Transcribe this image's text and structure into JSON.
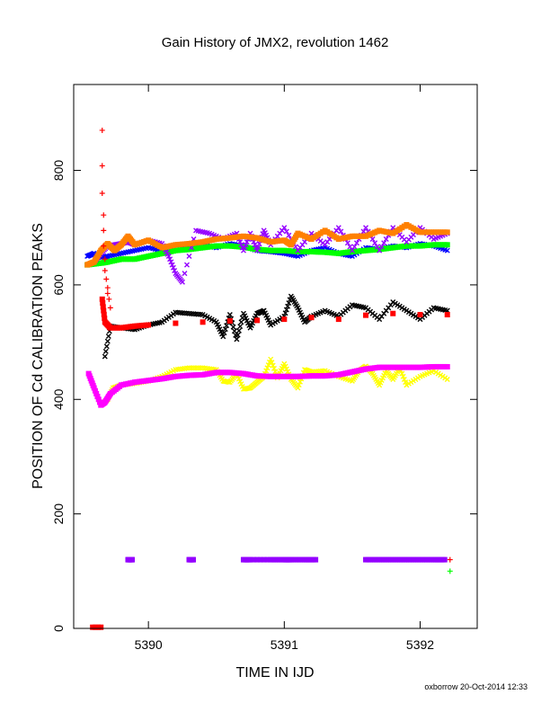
{
  "chart_data": {
    "type": "scatter",
    "title": "Gain History of JMX2, revolution 1462",
    "xlabel": "TIME IN IJD",
    "ylabel": "POSITION OF Cd CALIBRATION PEAKS",
    "footer": "oxborrow 20-Oct-2014 12:33",
    "xlim": [
      5389.45,
      5392.42
    ],
    "ylim": [
      0,
      950
    ],
    "x_ticks": [
      5390,
      5391,
      5392
    ],
    "y_ticks": [
      0,
      200,
      400,
      600,
      800
    ],
    "grid": false,
    "series": [
      {
        "color": "#ffff00",
        "marker": "x",
        "x": [
          5389.66,
          5389.7,
          5389.74,
          5389.8,
          5389.9,
          5390.0,
          5390.1,
          5390.2,
          5390.3,
          5390.4,
          5390.5,
          5390.55,
          5390.6,
          5390.65,
          5390.7,
          5390.75,
          5390.8,
          5390.85,
          5390.9,
          5390.95,
          5391.0,
          5391.05,
          5391.1,
          5391.15,
          5391.2,
          5391.3,
          5391.4,
          5391.5,
          5391.55,
          5391.6,
          5391.65,
          5391.7,
          5391.75,
          5391.8,
          5391.85,
          5391.9,
          5392.0,
          5392.1,
          5392.2
        ],
        "y": [
          392,
          400,
          420,
          425,
          428,
          432,
          440,
          452,
          455,
          455,
          452,
          432,
          430,
          445,
          418,
          420,
          430,
          440,
          470,
          438,
          462,
          435,
          420,
          452,
          448,
          450,
          440,
          432,
          450,
          458,
          445,
          425,
          450,
          435,
          455,
          425,
          440,
          450,
          435
        ]
      },
      {
        "color": "#ff00ff",
        "marker": "box",
        "x": [
          5389.56,
          5389.6,
          5389.65,
          5389.68,
          5389.72,
          5389.8,
          5389.9,
          5390.0,
          5390.1,
          5390.2,
          5390.3,
          5390.4,
          5390.5,
          5390.6,
          5390.7,
          5390.8,
          5390.9,
          5391.0,
          5391.1,
          5391.2,
          5391.3,
          5391.4,
          5391.5,
          5391.6,
          5391.7,
          5391.8,
          5391.9,
          5392.0,
          5392.1,
          5392.2
        ],
        "y": [
          445,
          420,
          390,
          395,
          410,
          425,
          430,
          433,
          436,
          440,
          442,
          443,
          447,
          447,
          445,
          441,
          440,
          440,
          440,
          441,
          441,
          443,
          448,
          453,
          456,
          456,
          456,
          456,
          457,
          457
        ]
      },
      {
        "color": "#000000",
        "marker": "x",
        "x": [
          5389.68,
          5389.72,
          5389.8,
          5389.9,
          5390.0,
          5390.1,
          5390.2,
          5390.3,
          5390.4,
          5390.5,
          5390.55,
          5390.6,
          5390.65,
          5390.7,
          5390.75,
          5390.8,
          5390.85,
          5390.9,
          5391.0,
          5391.05,
          5391.1,
          5391.15,
          5391.2,
          5391.3,
          5391.4,
          5391.5,
          5391.6,
          5391.7,
          5391.8,
          5391.9,
          5392.0,
          5392.1,
          5392.2
        ],
        "y": [
          475,
          528,
          525,
          522,
          530,
          535,
          552,
          550,
          548,
          535,
          510,
          548,
          505,
          550,
          525,
          550,
          555,
          530,
          545,
          580,
          560,
          535,
          545,
          555,
          545,
          565,
          560,
          540,
          570,
          555,
          540,
          560,
          555
        ]
      },
      {
        "color": "#ff0000",
        "marker": "box",
        "x": [
          5389.66,
          5389.68,
          5389.72,
          5389.8,
          5389.9,
          5390.0,
          5390.2,
          5390.4,
          5390.6,
          5390.8,
          5391.0,
          5391.2,
          5391.4,
          5391.6,
          5391.8,
          5392.0,
          5392.2
        ],
        "y": [
          575,
          535,
          525,
          525,
          528,
          530,
          533,
          535,
          537,
          538,
          540,
          543,
          540,
          547,
          550,
          548,
          548
        ]
      },
      {
        "color": "#0000ff",
        "marker": "x",
        "x": [
          5389.55,
          5389.6,
          5389.65,
          5389.7,
          5389.8,
          5389.9,
          5390.0,
          5390.1,
          5390.2,
          5390.3,
          5390.4,
          5390.5,
          5390.6,
          5390.7,
          5390.8,
          5390.9,
          5391.0,
          5391.1,
          5391.2,
          5391.3,
          5391.4,
          5391.5,
          5391.6,
          5391.7,
          5391.8,
          5391.9,
          5392.0,
          5392.1,
          5392.2
        ],
        "y": [
          650,
          655,
          648,
          650,
          655,
          660,
          665,
          660,
          670,
          668,
          670,
          665,
          672,
          668,
          660,
          658,
          655,
          650,
          660,
          665,
          655,
          650,
          665,
          662,
          668,
          665,
          672,
          668,
          660
        ]
      },
      {
        "color": "#00ff00",
        "marker": "box",
        "x": [
          5389.55,
          5389.65,
          5389.7,
          5389.8,
          5389.9,
          5390.0,
          5390.1,
          5390.2,
          5390.3,
          5390.4,
          5390.5,
          5390.6,
          5390.7,
          5390.8,
          5390.9,
          5391.0,
          5391.1,
          5391.2,
          5391.3,
          5391.4,
          5391.5,
          5391.6,
          5391.7,
          5391.8,
          5391.9,
          5392.0,
          5392.1,
          5392.2
        ],
        "y": [
          635,
          638,
          640,
          645,
          645,
          650,
          655,
          660,
          662,
          665,
          668,
          668,
          666,
          662,
          660,
          660,
          658,
          658,
          657,
          655,
          658,
          660,
          662,
          665,
          668,
          668,
          670,
          670
        ]
      },
      {
        "color": "#9400ff",
        "marker": "x",
        "x": [
          5389.6,
          5389.65,
          5389.7,
          5389.75,
          5389.8,
          5389.85,
          5389.9,
          5390.0,
          5390.1,
          5390.15,
          5390.2,
          5390.25,
          5390.35,
          5390.45,
          5390.55,
          5390.65,
          5390.7,
          5390.75,
          5390.8,
          5390.85,
          5390.9,
          5391.0,
          5391.1,
          5391.2,
          5391.3,
          5391.4,
          5391.5,
          5391.6,
          5391.7,
          5391.8,
          5391.9,
          5392.0,
          5392.1,
          5392.2
        ],
        "y": [
          640,
          655,
          668,
          670,
          672,
          675,
          670,
          678,
          672,
          650,
          620,
          605,
          695,
          690,
          680,
          690,
          660,
          690,
          660,
          695,
          670,
          700,
          660,
          690,
          670,
          700,
          660,
          700,
          660,
          700,
          675,
          700,
          680,
          690
        ]
      },
      {
        "color": "#ff8000",
        "marker": "box",
        "x": [
          5389.55,
          5389.6,
          5389.65,
          5389.7,
          5389.75,
          5389.8,
          5389.85,
          5389.9,
          5390.0,
          5390.1,
          5390.2,
          5390.3,
          5390.4,
          5390.5,
          5390.6,
          5390.7,
          5390.8,
          5390.9,
          5391.0,
          5391.05,
          5391.1,
          5391.2,
          5391.3,
          5391.4,
          5391.5,
          5391.6,
          5391.7,
          5391.8,
          5391.9,
          5392.0,
          5392.1,
          5392.2
        ],
        "y": [
          635,
          640,
          660,
          672,
          660,
          670,
          685,
          670,
          678,
          665,
          670,
          672,
          675,
          680,
          682,
          685,
          682,
          675,
          678,
          670,
          690,
          680,
          695,
          680,
          685,
          685,
          695,
          690,
          705,
          692,
          692,
          692
        ]
      },
      {
        "color": "#ff0000",
        "marker": "plus",
        "x": [
          5389.66,
          5389.66,
          5389.66,
          5389.67,
          5389.67,
          5389.67,
          5389.68,
          5389.68,
          5389.69,
          5389.7,
          5389.7,
          5389.71,
          5389.72,
          5392.22
        ],
        "y": [
          870,
          808,
          760,
          722,
          695,
          668,
          645,
          625,
          610,
          595,
          585,
          575,
          560,
          120
        ]
      },
      {
        "color": "#9400ff",
        "marker": "box",
        "x": [
          5389.85,
          5389.88,
          5390.3,
          5390.33,
          5390.7,
          5390.75,
          5390.9,
          5391.0,
          5391.05,
          5391.15,
          5391.23,
          5391.6,
          5391.7,
          5391.8,
          5391.9,
          5392.0,
          5392.1,
          5392.18
        ],
        "y": [
          120,
          120,
          120,
          120,
          120,
          120,
          120,
          120,
          120,
          120,
          120,
          120,
          120,
          120,
          120,
          120,
          120,
          120
        ]
      },
      {
        "color": "#00ff00",
        "marker": "plus",
        "x": [
          5392.22
        ],
        "y": [
          100
        ]
      },
      {
        "color": "#ff0000",
        "marker": "box",
        "x": [
          5389.59,
          5389.61,
          5389.63,
          5389.65
        ],
        "y": [
          2,
          2,
          2,
          2
        ]
      }
    ]
  }
}
